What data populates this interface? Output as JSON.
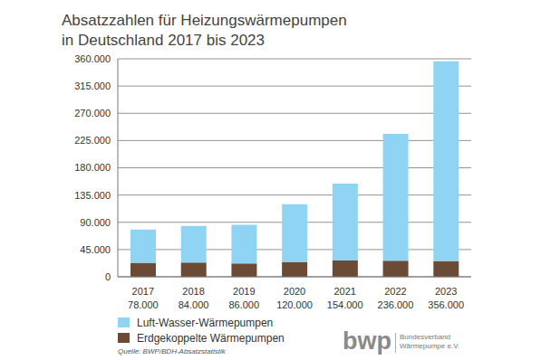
{
  "chart_data": {
    "type": "bar",
    "title": [
      "Absatzzahlen für Heizungswärmepumpen",
      "in Deutschland 2017 bis 2023"
    ],
    "categories": [
      "2017",
      "2018",
      "2019",
      "2020",
      "2021",
      "2022",
      "2023"
    ],
    "total_labels": [
      "78.000",
      "84.000",
      "86.000",
      "120.000",
      "154.000",
      "236.000",
      "356.000"
    ],
    "series": [
      {
        "name": "Luft-Wasser-Wärmepumpen",
        "color": "#8fd4f2",
        "values": [
          55000,
          60500,
          64000,
          95500,
          127000,
          209500,
          330000
        ]
      },
      {
        "name": "Erdgekoppelte Wärmepumpen",
        "color": "#6b4a36",
        "values": [
          23000,
          23500,
          22000,
          24500,
          27000,
          26500,
          26000
        ]
      }
    ],
    "stacked": true,
    "grid": true,
    "legend": "bottom-left",
    "ylim": [
      0,
      360000
    ],
    "yticks": [
      0,
      {
        "value": 45000,
        "label": "45.000"
      },
      {
        "value": 90000,
        "label": "90.000"
      },
      {
        "value": 135000,
        "label": "135.000"
      },
      {
        "value": 180000,
        "label": "180.000"
      },
      {
        "value": 225000,
        "label": "225.000"
      },
      {
        "value": 270000,
        "label": "270.000"
      },
      {
        "value": 315000,
        "label": "315.000"
      },
      {
        "value": 360000,
        "label": "360.000"
      }
    ],
    "source": "Quelle: BWP/BDH-Absatzstatistik",
    "logo": {
      "text": "bwp",
      "caption": [
        "Bundesverband",
        "Wärmepumpe e.V."
      ]
    }
  }
}
